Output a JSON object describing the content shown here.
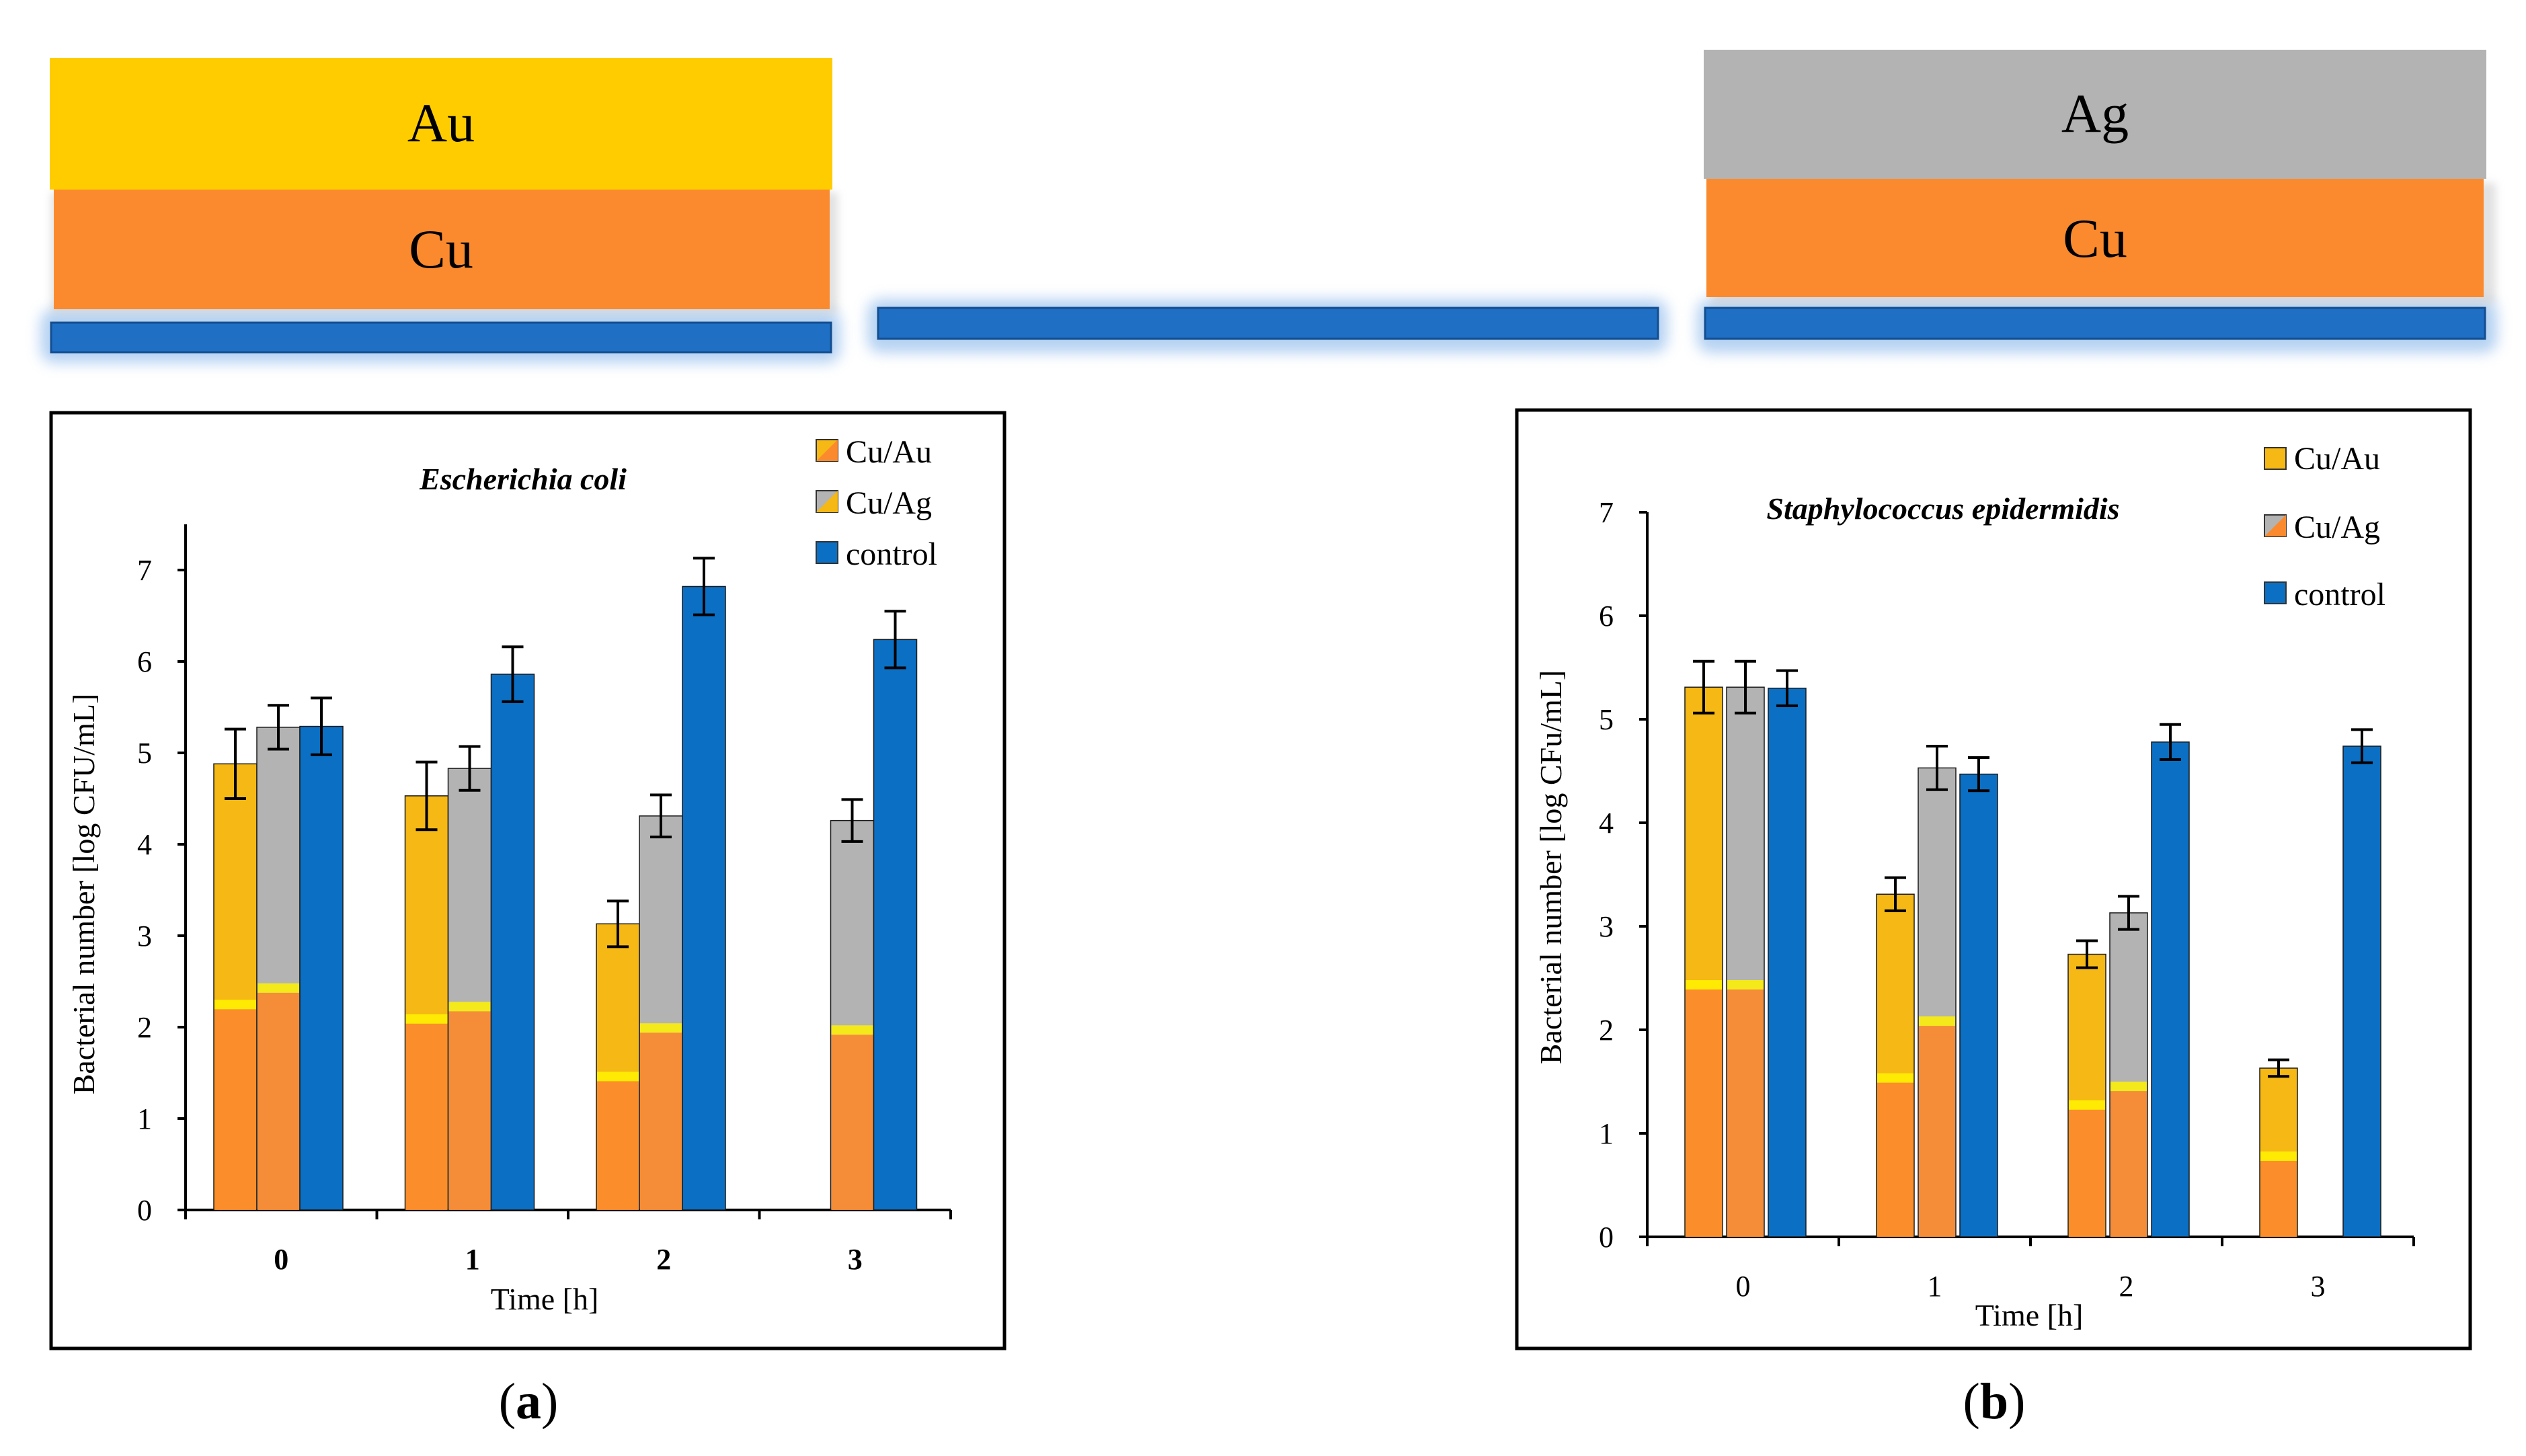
{
  "layers": {
    "left": {
      "top": "Au",
      "bottom": "Cu"
    },
    "right": {
      "top": "Ag",
      "bottom": "Cu"
    }
  },
  "colors": {
    "gold": "#FFCC00",
    "gold_bar": "#F5B814",
    "copper": "#FB8A2E",
    "silver": "#B3B3B3",
    "substrate": "#1F6FC5",
    "control": "#0B6FC4"
  },
  "panel_labels": {
    "a": "a",
    "b": "b"
  },
  "chart_data": [
    {
      "type": "bar",
      "title": "Escherichia coli",
      "xlabel": "Time [h]",
      "ylabel": "Bacterial number [log CFU/mL]",
      "ylim": [
        0,
        7.5
      ],
      "yticks": [
        0,
        1,
        2,
        3,
        4,
        5,
        6,
        7
      ],
      "categories": [
        "0",
        "1",
        "2",
        "3"
      ],
      "series": [
        {
          "name": "Cu/Au",
          "values": [
            4.88,
            4.53,
            3.13,
            null
          ],
          "errors": [
            0.38,
            0.37,
            0.25,
            null
          ]
        },
        {
          "name": "Cu/Ag",
          "values": [
            5.28,
            4.83,
            4.31,
            4.26
          ],
          "errors": [
            0.24,
            0.24,
            0.23,
            0.23
          ]
        },
        {
          "name": "control",
          "values": [
            5.29,
            5.86,
            6.82,
            6.24
          ],
          "errors": [
            0.31,
            0.3,
            0.31,
            0.31
          ]
        }
      ]
    },
    {
      "type": "bar",
      "title": "Staphylococcus epidermidis",
      "xlabel": "Time [h]",
      "ylabel": "Bacterial number [log CFu/mL]",
      "ylim": [
        0,
        7
      ],
      "yticks": [
        0,
        1,
        2,
        3,
        4,
        5,
        6,
        7
      ],
      "categories": [
        "0",
        "1",
        "2",
        "3"
      ],
      "series": [
        {
          "name": "Cu/Au",
          "values": [
            5.31,
            3.31,
            2.73,
            1.63
          ],
          "errors": [
            0.25,
            0.16,
            0.13,
            0.08
          ]
        },
        {
          "name": "Cu/Ag",
          "values": [
            5.31,
            4.53,
            3.13,
            null
          ],
          "errors": [
            0.25,
            0.21,
            0.16,
            null
          ]
        },
        {
          "name": "control",
          "values": [
            5.3,
            4.47,
            4.78,
            4.74
          ],
          "errors": [
            0.17,
            0.16,
            0.17,
            0.16
          ]
        }
      ]
    }
  ]
}
